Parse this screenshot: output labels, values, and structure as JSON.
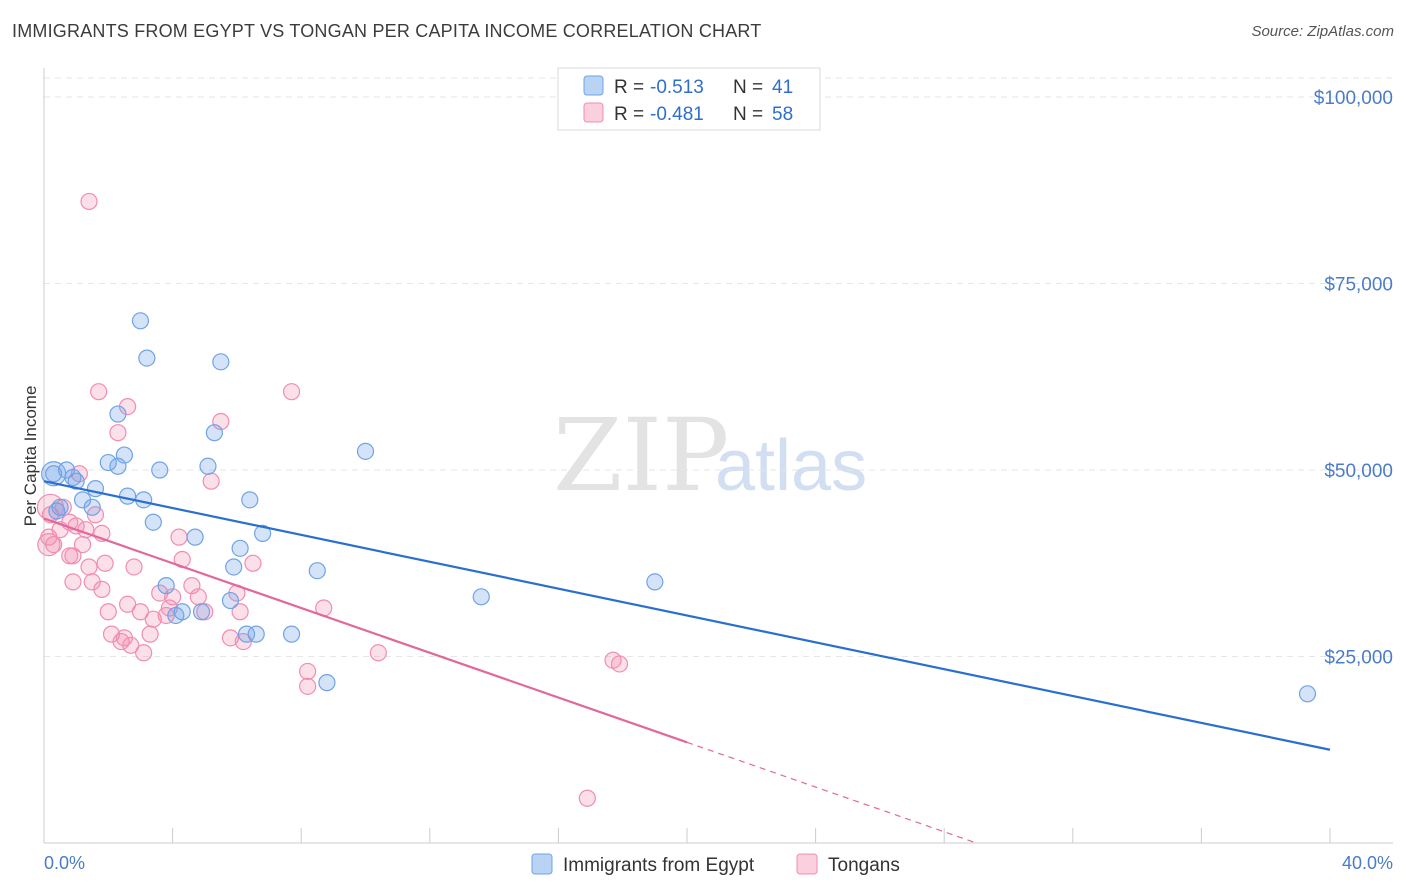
{
  "title": "IMMIGRANTS FROM EGYPT VS TONGAN PER CAPITA INCOME CORRELATION CHART",
  "source": "Source: ZipAtlas.com",
  "watermark": {
    "zip": "ZIP",
    "atlas": "atlas"
  },
  "legend": {
    "rows": [
      {
        "r_label": "R =",
        "r_value": "-0.513",
        "n_label": "N =",
        "n_value": "41"
      },
      {
        "r_label": "R =",
        "r_value": "-0.481",
        "n_label": "N =",
        "n_value": "58"
      }
    ]
  },
  "bottom_legend": [
    "Immigrants from Egypt",
    "Tongans"
  ],
  "chart_data": {
    "type": "scatter",
    "title": "IMMIGRANTS FROM EGYPT VS TONGAN PER CAPITA INCOME CORRELATION CHART",
    "xlabel": "",
    "ylabel": "Per Capita Income",
    "xlim": [
      0,
      40
    ],
    "ylim": [
      0,
      105000
    ],
    "x_tick_labels": [
      "0.0%",
      "40.0%"
    ],
    "y_ticks": [
      25000,
      50000,
      75000,
      100000
    ],
    "y_tick_labels": [
      "$25,000",
      "$50,000",
      "$75,000",
      "$100,000"
    ],
    "grid": true,
    "colors": {
      "egypt": "#6fa3e8",
      "egypt_line": "#2a6fd0",
      "tongan": "#f28db0",
      "tongan_line": "#e0699a"
    },
    "series": [
      {
        "name": "Immigrants from Egypt",
        "r": -0.513,
        "n": 41,
        "trend": {
          "x0": 0,
          "y0": 48500,
          "x1": 40,
          "y1": 12500
        },
        "points": [
          [
            0.3,
            49500
          ],
          [
            0.5,
            45000
          ],
          [
            0.7,
            50000
          ],
          [
            1.0,
            48500
          ],
          [
            1.2,
            46000
          ],
          [
            1.5,
            45000
          ],
          [
            2.0,
            51000
          ],
          [
            2.3,
            50500
          ],
          [
            2.3,
            57500
          ],
          [
            2.5,
            52000
          ],
          [
            2.6,
            46500
          ],
          [
            3.0,
            70000
          ],
          [
            3.1,
            46000
          ],
          [
            3.2,
            65000
          ],
          [
            3.4,
            43000
          ],
          [
            3.6,
            50000
          ],
          [
            3.8,
            34500
          ],
          [
            4.1,
            30500
          ],
          [
            4.3,
            31000
          ],
          [
            4.7,
            41000
          ],
          [
            4.9,
            31000
          ],
          [
            5.1,
            50500
          ],
          [
            5.3,
            55000
          ],
          [
            5.5,
            64500
          ],
          [
            5.8,
            32500
          ],
          [
            5.9,
            37000
          ],
          [
            6.1,
            39500
          ],
          [
            6.3,
            28000
          ],
          [
            6.4,
            46000
          ],
          [
            6.6,
            28000
          ],
          [
            6.8,
            41500
          ],
          [
            7.7,
            28000
          ],
          [
            8.5,
            36500
          ],
          [
            8.8,
            21500
          ],
          [
            10.0,
            52500
          ],
          [
            13.6,
            33000
          ],
          [
            19.0,
            35000
          ],
          [
            39.3,
            20000
          ],
          [
            0.4,
            44500
          ],
          [
            0.9,
            49000
          ],
          [
            1.6,
            47500
          ]
        ]
      },
      {
        "name": "Tongans",
        "r": -0.481,
        "n": 58,
        "trend": {
          "x0": 0,
          "y0": 43500,
          "x1": 20,
          "y1": 13500,
          "dash_x1": 29,
          "dash_y1": 0
        },
        "points": [
          [
            0.2,
            44000
          ],
          [
            0.3,
            40000
          ],
          [
            0.5,
            42000
          ],
          [
            0.6,
            45000
          ],
          [
            0.8,
            43000
          ],
          [
            0.8,
            38500
          ],
          [
            0.9,
            35000
          ],
          [
            1.0,
            42500
          ],
          [
            1.1,
            49500
          ],
          [
            1.3,
            42000
          ],
          [
            1.4,
            86000
          ],
          [
            1.4,
            37000
          ],
          [
            1.5,
            35000
          ],
          [
            1.6,
            44000
          ],
          [
            1.7,
            60500
          ],
          [
            1.8,
            34000
          ],
          [
            1.8,
            41500
          ],
          [
            1.9,
            37500
          ],
          [
            2.0,
            31000
          ],
          [
            2.1,
            28000
          ],
          [
            2.3,
            55000
          ],
          [
            2.4,
            27000
          ],
          [
            2.5,
            27500
          ],
          [
            2.6,
            32000
          ],
          [
            2.6,
            58500
          ],
          [
            2.8,
            37000
          ],
          [
            3.0,
            31000
          ],
          [
            3.1,
            25500
          ],
          [
            3.3,
            28000
          ],
          [
            3.4,
            30000
          ],
          [
            3.6,
            33500
          ],
          [
            3.8,
            30500
          ],
          [
            4.0,
            33000
          ],
          [
            4.2,
            41000
          ],
          [
            4.3,
            38000
          ],
          [
            4.6,
            34500
          ],
          [
            4.8,
            33000
          ],
          [
            5.0,
            31000
          ],
          [
            5.2,
            48500
          ],
          [
            5.5,
            56500
          ],
          [
            5.8,
            27500
          ],
          [
            6.0,
            33500
          ],
          [
            6.1,
            31000
          ],
          [
            6.2,
            27000
          ],
          [
            7.7,
            60500
          ],
          [
            8.2,
            23000
          ],
          [
            8.2,
            21000
          ],
          [
            8.7,
            31500
          ],
          [
            10.4,
            25500
          ],
          [
            17.7,
            24500
          ],
          [
            17.9,
            24000
          ],
          [
            16.9,
            6000
          ],
          [
            0.15,
            41000
          ],
          [
            0.9,
            38500
          ],
          [
            3.9,
            31500
          ],
          [
            6.5,
            37500
          ],
          [
            1.2,
            40000
          ],
          [
            2.7,
            26500
          ]
        ]
      }
    ]
  }
}
